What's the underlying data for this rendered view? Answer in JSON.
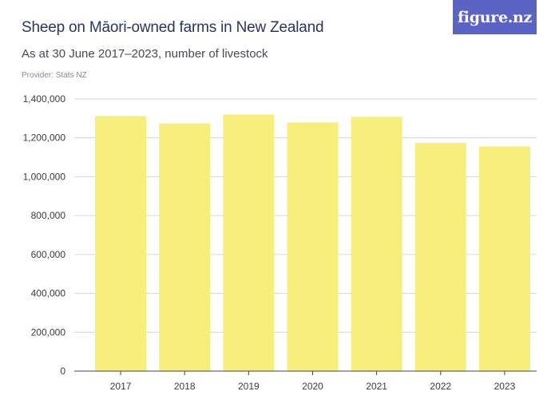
{
  "header": {
    "title": "Sheep on Māori-owned farms in New Zealand",
    "subtitle": "As at 30 June 2017–2023,  number of livestock",
    "provider": "Provider: Stats NZ"
  },
  "logo": {
    "text": "figure.nz",
    "color": "#5b63c5"
  },
  "chart_data": {
    "type": "bar",
    "title": "Sheep on Māori-owned farms in New Zealand",
    "subtitle": "As at 30 June 2017–2023,  number of livestock",
    "xlabel": "",
    "ylabel": "",
    "categories": [
      "2017",
      "2018",
      "2019",
      "2020",
      "2021",
      "2022",
      "2023"
    ],
    "values": [
      1312000,
      1274000,
      1320000,
      1279000,
      1308000,
      1174000,
      1156000
    ],
    "ylim": [
      0,
      1400000
    ],
    "yticks": [
      0,
      200000,
      400000,
      600000,
      800000,
      1000000,
      1200000,
      1400000
    ],
    "ytick_labels": [
      "0",
      "200,000",
      "400,000",
      "600,000",
      "800,000",
      "1,000,000",
      "1,200,000",
      "1,400,000"
    ],
    "bar_color": "#f7ef7b",
    "grid": true
  }
}
